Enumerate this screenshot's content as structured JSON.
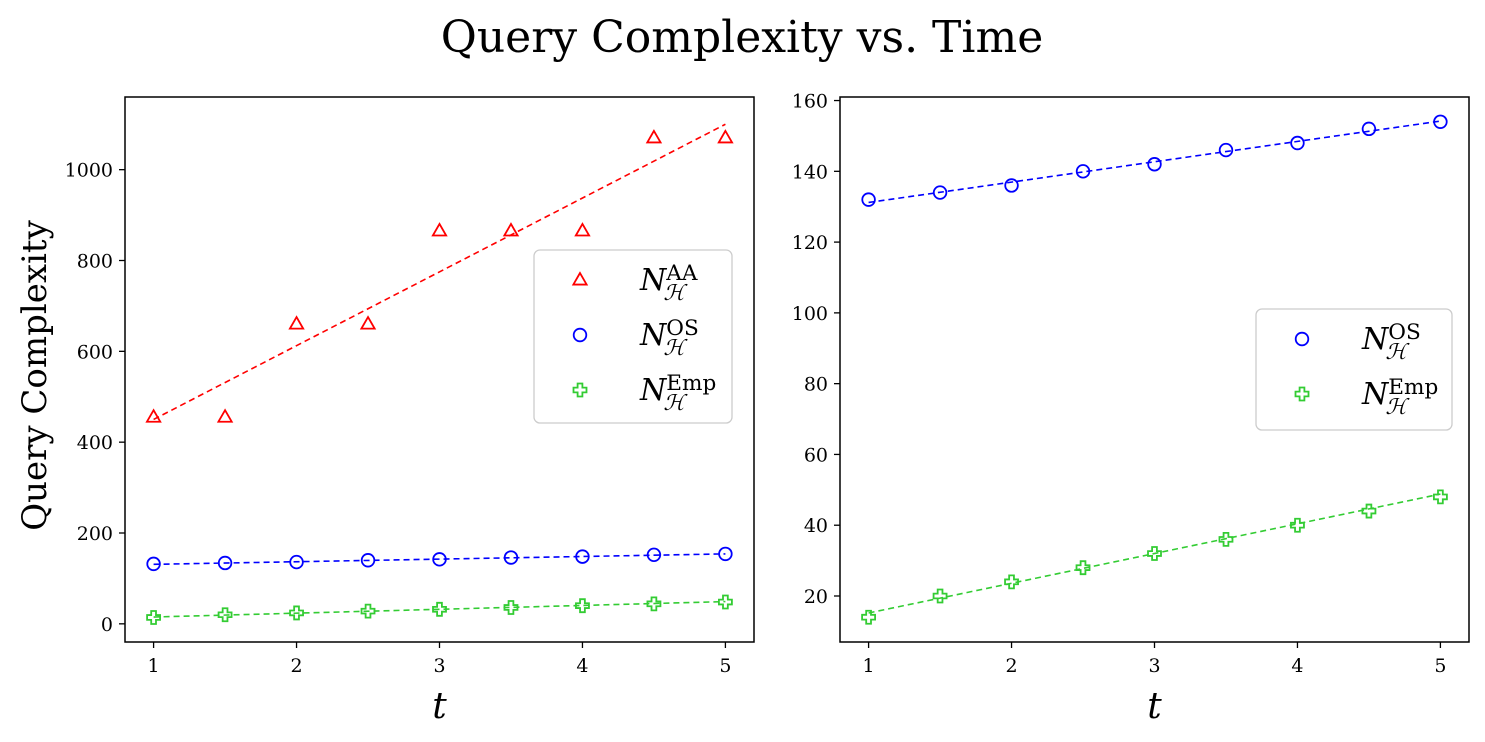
{
  "figure": {
    "title": "Query Complexity vs. Time"
  },
  "legend_symbols": {
    "N": "N",
    "H": "ℋ"
  },
  "chart_data": [
    {
      "type": "scatter",
      "panel": "left",
      "xlabel": "t",
      "ylabel": "Query Complexity",
      "xlim": [
        0.8,
        5.2
      ],
      "ylim": [
        -40,
        1160
      ],
      "xticks": [
        1,
        2,
        3,
        4,
        5
      ],
      "yticks": [
        0,
        200,
        400,
        600,
        800,
        1000
      ],
      "grid": false,
      "legend_position": "center-right",
      "x": [
        1,
        1.5,
        2,
        2.5,
        3,
        3.5,
        4,
        4.5,
        5
      ],
      "series": [
        {
          "name": "AA",
          "color": "#ff0000",
          "marker": "triangle",
          "values": [
            455,
            455,
            660,
            660,
            865,
            865,
            865,
            1070,
            1070
          ],
          "fit": [
            1,
            450,
            5,
            1100
          ]
        },
        {
          "name": "OS",
          "color": "#0000ff",
          "marker": "circle",
          "values": [
            132,
            134,
            136,
            140,
            142,
            146,
            148,
            152,
            154
          ],
          "fit": [
            1,
            131,
            5,
            154
          ]
        },
        {
          "name": "Emp",
          "color": "#33cc33",
          "marker": "plus",
          "values": [
            14,
            20,
            24,
            28,
            32,
            36,
            40,
            44,
            48
          ],
          "fit": [
            1,
            15,
            5,
            49
          ]
        }
      ]
    },
    {
      "type": "scatter",
      "panel": "right",
      "xlabel": "t",
      "ylabel": "",
      "xlim": [
        0.8,
        5.2
      ],
      "ylim": [
        7,
        161
      ],
      "xticks": [
        1,
        2,
        3,
        4,
        5
      ],
      "yticks": [
        20,
        40,
        60,
        80,
        100,
        120,
        140,
        160
      ],
      "grid": false,
      "legend_position": "center-right",
      "x": [
        1,
        1.5,
        2,
        2.5,
        3,
        3.5,
        4,
        4.5,
        5
      ],
      "series": [
        {
          "name": "OS",
          "color": "#0000ff",
          "marker": "circle",
          "values": [
            132,
            134,
            136,
            140,
            142,
            146,
            148,
            152,
            154
          ],
          "fit": [
            1,
            131.2,
            5,
            154.2
          ]
        },
        {
          "name": "Emp",
          "color": "#33cc33",
          "marker": "plus",
          "values": [
            14,
            20,
            24,
            28,
            32,
            36,
            40,
            44,
            48
          ],
          "fit": [
            1,
            15.2,
            5,
            48.8
          ]
        }
      ]
    }
  ]
}
